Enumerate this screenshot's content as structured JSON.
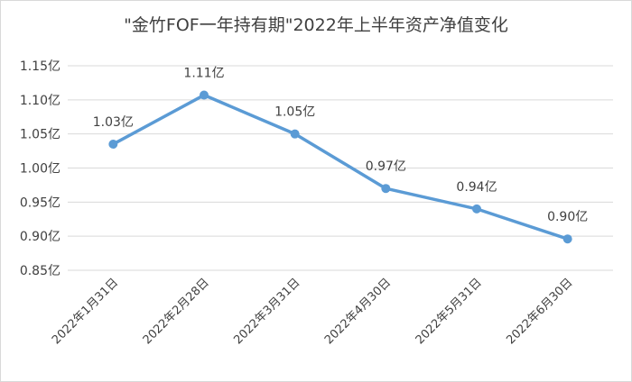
{
  "chart_data": {
    "type": "line",
    "title": "\"金竹FOF一年持有期\"2022年上半年资产净值变化",
    "categories": [
      "2022年1月31日",
      "2022年2月28日",
      "2022年3月31日",
      "2022年4月30日",
      "2022年5月31日",
      "2022年6月30日"
    ],
    "values": [
      1.035,
      1.107,
      1.05,
      0.97,
      0.94,
      0.896
    ],
    "data_labels": [
      "1.03亿",
      "1.11亿",
      "1.05亿",
      "0.97亿",
      "0.94亿",
      "0.90亿"
    ],
    "y_ticks": [
      "0.85亿",
      "0.90亿",
      "0.95亿",
      "1.00亿",
      "1.05亿",
      "1.10亿",
      "1.15亿"
    ],
    "y_tick_values": [
      0.85,
      0.9,
      0.95,
      1.0,
      1.05,
      1.1,
      1.15
    ],
    "ylim": [
      0.85,
      1.15
    ],
    "xlabel": "",
    "ylabel": "",
    "grid": true,
    "legend": "none",
    "colors": {
      "line": "#5b9bd5",
      "grid": "#d9d9d9",
      "text": "#404040"
    }
  }
}
